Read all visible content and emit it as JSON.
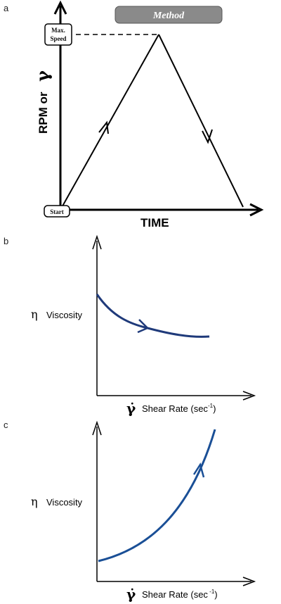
{
  "panel_a": {
    "letter": "a",
    "method_label": "Method",
    "max_speed_line1": "Max.",
    "max_speed_line2": "Speed",
    "start_label": "Start",
    "y_axis_label": "RPM or ",
    "y_axis_symbol": "γ",
    "x_axis_label": "TIME"
  },
  "panel_b": {
    "letter": "b",
    "viscosity_symbol": "η",
    "viscosity_label": "Viscosity",
    "shear_symbol": "γ̇",
    "shear_label": "Shear Rate (sec",
    "shear_exponent": "-1",
    "shear_close": ")"
  },
  "panel_c": {
    "letter": "c",
    "viscosity_symbol": "η",
    "viscosity_label": "Viscosity",
    "shear_symbol": "γ̇",
    "shear_label": "Shear Rate (sec",
    "shear_exponent": " -1",
    "shear_close": ")"
  },
  "colors": {
    "curve": "#1f3a7a",
    "curve_c": "#1a4f96",
    "method_box": "#8a8a8a"
  }
}
